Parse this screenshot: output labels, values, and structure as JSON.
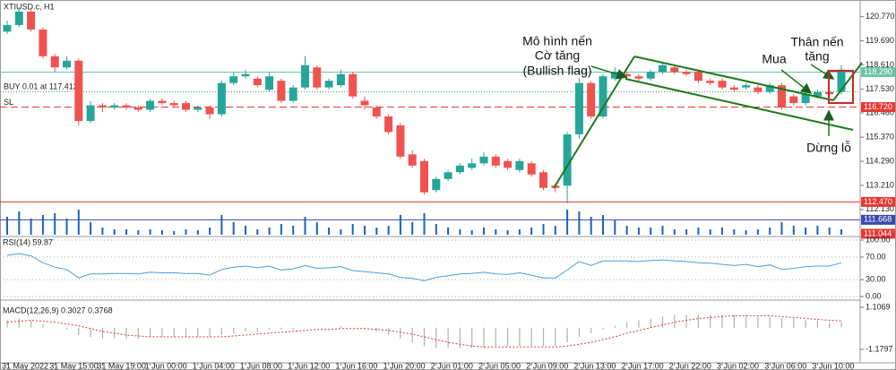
{
  "chart_data": [
    {
      "type": "candlestick",
      "title": "XTIUSD.c, H1",
      "categories": [
        "31 May 2022",
        null,
        null,
        null,
        "31 May 15:00",
        null,
        null,
        null,
        "31 May 19:00",
        null,
        null,
        null,
        "1 Jun 00:00",
        null,
        null,
        null,
        "1 Jun 04:00",
        null,
        null,
        null,
        "1 Jun 08:00",
        null,
        null,
        null,
        "1 Jun 12:00",
        null,
        null,
        null,
        "1 Jun 16:00",
        null,
        null,
        null,
        "1 Jun 20:00",
        null,
        null,
        null,
        "2 Jun 01:00",
        null,
        null,
        null,
        "2 Jun 05:00",
        null,
        null,
        null,
        "2 Jun 09:00",
        null,
        null,
        null,
        "2 Jun 13:00",
        null,
        null,
        null,
        "2 Jun 17:00",
        null,
        null,
        null,
        "2 Jun 22:00",
        null,
        null,
        null,
        "3 Jun 02:00",
        null,
        null,
        null,
        "3 Jun 06:00",
        null,
        null,
        null,
        "3 Jun 10:00",
        null,
        null
      ],
      "open": [
        120.1,
        120.4,
        121.0,
        120.2,
        119.0,
        118.5,
        118.8,
        116.1,
        116.8,
        116.7,
        116.8,
        116.7,
        116.6,
        117.0,
        116.9,
        116.9,
        116.6,
        116.7,
        116.4,
        117.8,
        118.1,
        118.0,
        117.5,
        117.9,
        117.0,
        117.6,
        118.5,
        117.6,
        117.7,
        118.2,
        117.0,
        116.7,
        116.3,
        115.9,
        114.6,
        114.3,
        113.0,
        113.5,
        113.8,
        114.0,
        114.2,
        114.5,
        114.3,
        113.9,
        114.2,
        113.8,
        113.2,
        113.2,
        115.5,
        117.8,
        116.3,
        118.0,
        118.2,
        118.1,
        118.0,
        118.3,
        118.5,
        118.3,
        118.3,
        117.9,
        117.9,
        117.6,
        117.6,
        117.6,
        117.4,
        117.7,
        117.2,
        116.9,
        117.2,
        117.4,
        117.4
      ],
      "high": [
        120.6,
        121.2,
        121.1,
        120.3,
        119.1,
        119.0,
        118.9,
        117.0,
        116.9,
        116.9,
        116.9,
        116.8,
        117.1,
        117.1,
        117.0,
        117.0,
        116.8,
        116.8,
        117.9,
        118.3,
        118.4,
        118.1,
        118.3,
        118.0,
        117.7,
        119.0,
        118.6,
        118.0,
        118.4,
        118.3,
        117.2,
        116.8,
        116.4,
        116.0,
        114.8,
        114.4,
        113.6,
        113.9,
        114.2,
        114.4,
        114.7,
        114.6,
        114.4,
        114.4,
        114.3,
        113.9,
        113.3,
        115.6,
        118.0,
        117.9,
        118.2,
        118.5,
        118.3,
        118.2,
        118.4,
        118.7,
        118.6,
        118.4,
        118.4,
        118.0,
        118.0,
        117.7,
        117.8,
        117.7,
        117.8,
        117.8,
        117.3,
        117.4,
        117.5,
        117.5,
        118.6
      ],
      "low": [
        120.0,
        120.3,
        120.1,
        118.9,
        118.3,
        118.4,
        115.9,
        116.0,
        116.5,
        116.6,
        116.6,
        116.5,
        116.5,
        116.8,
        116.7,
        116.5,
        116.5,
        116.2,
        116.3,
        117.7,
        118.0,
        117.6,
        117.4,
        116.9,
        116.9,
        117.5,
        117.5,
        117.5,
        117.6,
        117.1,
        116.6,
        116.2,
        115.5,
        114.4,
        114.0,
        112.8,
        112.9,
        113.4,
        113.7,
        113.9,
        114.1,
        114.0,
        113.9,
        113.8,
        113.6,
        113.0,
        112.9,
        112.4,
        115.3,
        116.2,
        116.2,
        117.9,
        118.0,
        117.9,
        117.9,
        118.2,
        118.2,
        118.1,
        117.8,
        117.7,
        117.5,
        117.4,
        117.5,
        117.3,
        117.3,
        116.6,
        116.8,
        116.8,
        117.1,
        117.2,
        117.3
      ],
      "close": [
        120.4,
        121.0,
        120.2,
        119.0,
        118.5,
        118.8,
        116.1,
        116.8,
        116.7,
        116.8,
        116.7,
        116.6,
        117.0,
        116.9,
        116.8,
        116.6,
        116.7,
        116.4,
        117.8,
        118.1,
        118.2,
        117.7,
        118.1,
        117.0,
        117.6,
        118.6,
        117.6,
        117.9,
        118.2,
        117.2,
        116.8,
        116.3,
        115.6,
        114.5,
        114.1,
        112.9,
        113.5,
        113.8,
        114.1,
        114.2,
        114.5,
        114.1,
        114.0,
        114.3,
        113.7,
        113.1,
        113.1,
        115.5,
        117.8,
        116.3,
        118.1,
        118.3,
        118.1,
        118.0,
        118.3,
        118.6,
        118.3,
        118.2,
        117.9,
        117.8,
        117.6,
        117.5,
        117.7,
        117.4,
        117.7,
        116.7,
        116.9,
        117.3,
        117.4,
        117.3,
        118.4
      ],
      "up_color": "#26a69a",
      "down_color": "#ef5350",
      "ylim": [
        111.0,
        121.4
      ],
      "yticks": [
        {
          "value": 120.77,
          "label": "120.770"
        },
        {
          "value": 119.69,
          "label": "119.690"
        },
        {
          "value": 118.61,
          "label": "118.610"
        },
        {
          "value": 117.53,
          "label": "117.530"
        },
        {
          "value": 116.46,
          "label": "116.460"
        },
        {
          "value": 115.37,
          "label": "115.370"
        },
        {
          "value": 114.29,
          "label": "114.290"
        },
        {
          "value": 113.21,
          "label": "113.210"
        },
        {
          "value": 112.13,
          "label": "112.130"
        }
      ],
      "price_lines": [
        {
          "value": 118.29,
          "label": "118.290",
          "color": "#6cc3a8",
          "style": "solid"
        },
        {
          "value": 117.412,
          "text": "BUY 0.01 at 117.412",
          "color": "#3a9a5a",
          "style": "dotted"
        },
        {
          "value": 116.72,
          "label": "116.720",
          "text": "SL",
          "color": "#e53935",
          "style": "dashed"
        },
        {
          "value": 112.47,
          "label": "112.470",
          "color": "#e53935",
          "style": "solid"
        },
        {
          "value": 111.668,
          "label": "111.668",
          "color": "#3949ab",
          "style": "solid"
        },
        {
          "value": 111.044,
          "label": "111.044",
          "color": "#e53935",
          "style": "none"
        }
      ],
      "annotations": [
        "Mô hình nến",
        "Cờ tăng",
        "(Bullish flag)",
        "Mua",
        "Thân nến",
        "tăng",
        "Dừng lỗ"
      ]
    },
    {
      "type": "bar",
      "color": "#1565c0",
      "ylim": [
        0,
        100
      ],
      "values": [
        20,
        26,
        18,
        22,
        24,
        18,
        28,
        14,
        8,
        6,
        6,
        5,
        6,
        5,
        4,
        6,
        5,
        8,
        22,
        14,
        10,
        6,
        8,
        12,
        10,
        20,
        14,
        8,
        6,
        12,
        10,
        8,
        10,
        22,
        14,
        24,
        12,
        8,
        6,
        5,
        8,
        6,
        5,
        6,
        8,
        12,
        10,
        28,
        26,
        20,
        22,
        16,
        10,
        8,
        8,
        10,
        6,
        6,
        8,
        6,
        8,
        6,
        5,
        6,
        8,
        14,
        10,
        8,
        10,
        8,
        6
      ]
    },
    {
      "type": "line",
      "title": "RSI(14) 59.87",
      "color": "#4a9fe0",
      "ylim": [
        0,
        100
      ],
      "yticks": [
        {
          "value": 100,
          "label": "100.00"
        },
        {
          "value": 70,
          "label": "70.00"
        },
        {
          "value": 30,
          "label": "30.00"
        },
        {
          "value": 0,
          "label": "0.00"
        }
      ],
      "values": [
        73,
        76,
        72,
        60,
        52,
        48,
        33,
        40,
        40,
        41,
        41,
        40,
        43,
        42,
        42,
        41,
        41,
        38,
        48,
        52,
        54,
        51,
        54,
        47,
        49,
        55,
        50,
        51,
        53,
        46,
        44,
        42,
        40,
        34,
        32,
        28,
        34,
        37,
        40,
        41,
        43,
        40,
        39,
        42,
        38,
        33,
        33,
        47,
        62,
        55,
        63,
        63,
        63,
        62,
        64,
        65,
        63,
        62,
        60,
        59,
        57,
        55,
        57,
        53,
        56,
        48,
        50,
        53,
        54,
        54,
        59.87
      ]
    },
    {
      "type": "macd",
      "title": "MACD(12,26,9) 0.3027 0.3768",
      "color": "#b0b0b0",
      "signal_color": "#e53935",
      "ylim": [
        -1.91,
        1.35
      ],
      "yticks": [
        {
          "value": 1.1069,
          "label": "1.1069"
        },
        {
          "value": -1.1797,
          "label": "-1.1797"
        }
      ],
      "values": [
        0.4,
        0.5,
        0.4,
        0.2,
        0.0,
        -0.1,
        -0.4,
        -0.5,
        -0.6,
        -0.6,
        -0.6,
        -0.6,
        -0.5,
        -0.5,
        -0.5,
        -0.5,
        -0.5,
        -0.5,
        -0.4,
        -0.3,
        -0.2,
        -0.2,
        -0.1,
        -0.1,
        -0.1,
        0.0,
        0.0,
        0.0,
        0.1,
        0.0,
        -0.1,
        -0.2,
        -0.4,
        -0.6,
        -0.8,
        -1.0,
        -1.1,
        -1.1,
        -1.1,
        -1.1,
        -1.1,
        -1.0,
        -1.0,
        -1.0,
        -1.0,
        -1.0,
        -1.0,
        -0.8,
        -0.5,
        -0.3,
        -0.1,
        0.1,
        0.3,
        0.4,
        0.5,
        0.6,
        0.7,
        0.7,
        0.7,
        0.7,
        0.7,
        0.7,
        0.7,
        0.6,
        0.6,
        0.5,
        0.5,
        0.4,
        0.4,
        0.3,
        0.3027
      ],
      "signal": [
        0.3,
        0.35,
        0.4,
        0.35,
        0.3,
        0.2,
        0.1,
        -0.05,
        -0.2,
        -0.3,
        -0.4,
        -0.45,
        -0.5,
        -0.5,
        -0.5,
        -0.5,
        -0.5,
        -0.5,
        -0.5,
        -0.45,
        -0.4,
        -0.35,
        -0.3,
        -0.25,
        -0.2,
        -0.15,
        -0.1,
        -0.1,
        -0.05,
        -0.05,
        -0.05,
        -0.1,
        -0.15,
        -0.25,
        -0.35,
        -0.5,
        -0.65,
        -0.8,
        -0.9,
        -1.0,
        -1.05,
        -1.05,
        -1.05,
        -1.05,
        -1.05,
        -1.05,
        -1.05,
        -1.0,
        -0.9,
        -0.8,
        -0.65,
        -0.5,
        -0.3,
        -0.15,
        0.0,
        0.15,
        0.3,
        0.4,
        0.5,
        0.55,
        0.6,
        0.65,
        0.65,
        0.65,
        0.65,
        0.6,
        0.55,
        0.5,
        0.45,
        0.4,
        0.3768
      ]
    }
  ]
}
